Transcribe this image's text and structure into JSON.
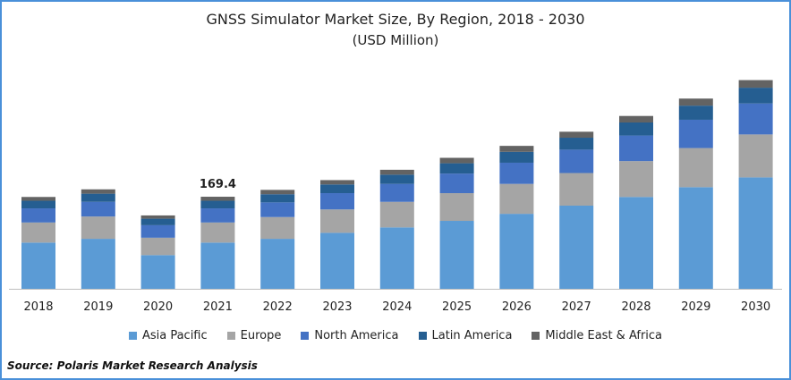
{
  "chart_data": {
    "type": "bar",
    "stacked": true,
    "title": "GNSS Simulator Market Size, By Region, 2018 - 2030",
    "subtitle": "(USD Million)",
    "categories": [
      "2018",
      "2019",
      "2020",
      "2021",
      "2022",
      "2023",
      "2024",
      "2025",
      "2026",
      "2027",
      "2028",
      "2029",
      "2030"
    ],
    "series": [
      {
        "name": "Asia Pacific",
        "color": "#5b9bd5",
        "values": [
          85,
          92,
          62,
          85,
          92,
          103,
          113,
          125,
          138,
          153,
          169,
          187,
          205
        ]
      },
      {
        "name": "Europe",
        "color": "#a5a5a5",
        "values": [
          37,
          41,
          32,
          37,
          40,
          43,
          47,
          51,
          55,
          60,
          66,
          72,
          79
        ]
      },
      {
        "name": "North America",
        "color": "#4472c4",
        "values": [
          26,
          27,
          23,
          26,
          27,
          30,
          33,
          36,
          39,
          43,
          47,
          52,
          57
        ]
      },
      {
        "name": "Latin America",
        "color": "#255e91",
        "values": [
          14,
          15,
          12,
          14,
          15,
          16,
          17,
          19,
          20,
          22,
          24,
          26,
          29
        ]
      },
      {
        "name": "Middle East & Africa",
        "color": "#636363",
        "values": [
          7,
          8,
          6,
          7.4,
          8,
          8,
          9,
          10,
          11,
          11,
          12,
          13,
          14
        ]
      }
    ],
    "annotations": [
      {
        "category": "2021",
        "label": "169.4"
      }
    ],
    "ylim": [
      0,
      380
    ],
    "legend_position": "bottom",
    "grid": false
  },
  "source": "Source: Polaris  Market Research Analysis"
}
